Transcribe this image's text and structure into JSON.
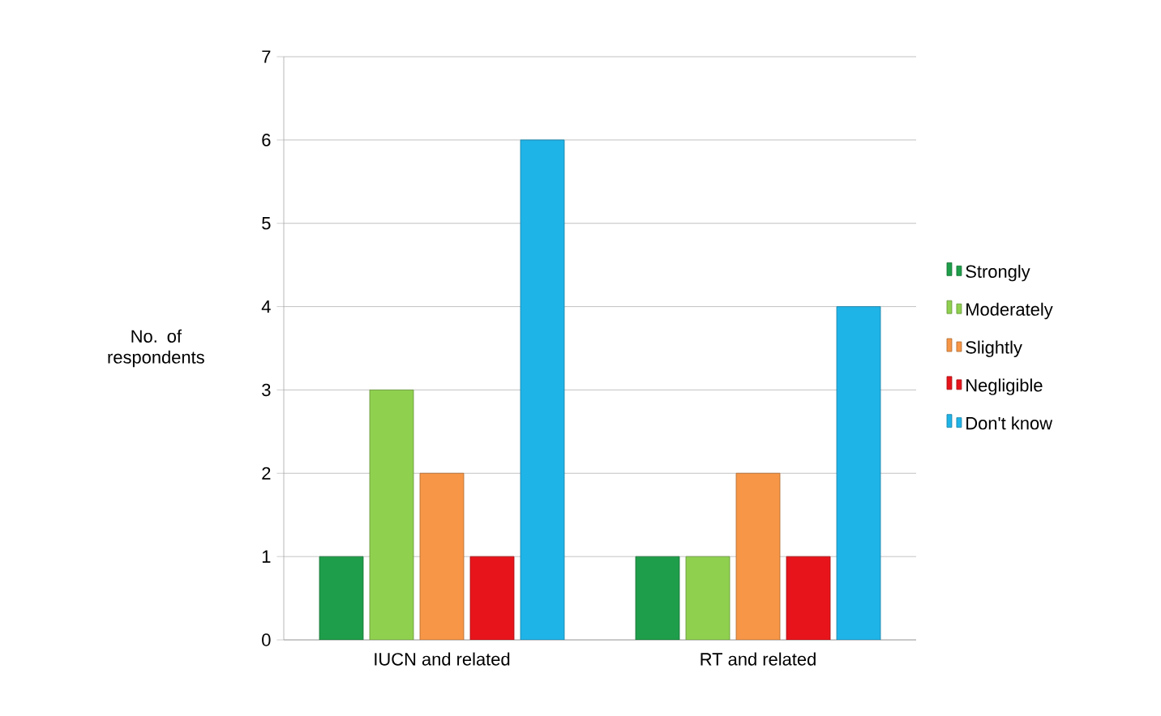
{
  "chart_data": {
    "type": "bar",
    "ylabel": "No. of respondents",
    "categories": [
      "IUCN and related",
      "RT and related"
    ],
    "series": [
      {
        "name": "Strongly",
        "color": "#1e9e4a",
        "values": [
          1,
          1
        ]
      },
      {
        "name": "Moderately",
        "color": "#8fd14f",
        "values": [
          3,
          1
        ]
      },
      {
        "name": "Slightly",
        "color": "#f79646",
        "values": [
          2,
          2
        ]
      },
      {
        "name": "Negligible",
        "color": "#e8141b",
        "values": [
          1,
          1
        ]
      },
      {
        "name": "Don't know",
        "color": "#1fb4e8",
        "values": [
          6,
          4
        ]
      }
    ],
    "ylim": [
      0,
      7
    ],
    "yticks": [
      0,
      1,
      2,
      3,
      4,
      5,
      6,
      7
    ],
    "grid": "y",
    "legend": "right"
  }
}
